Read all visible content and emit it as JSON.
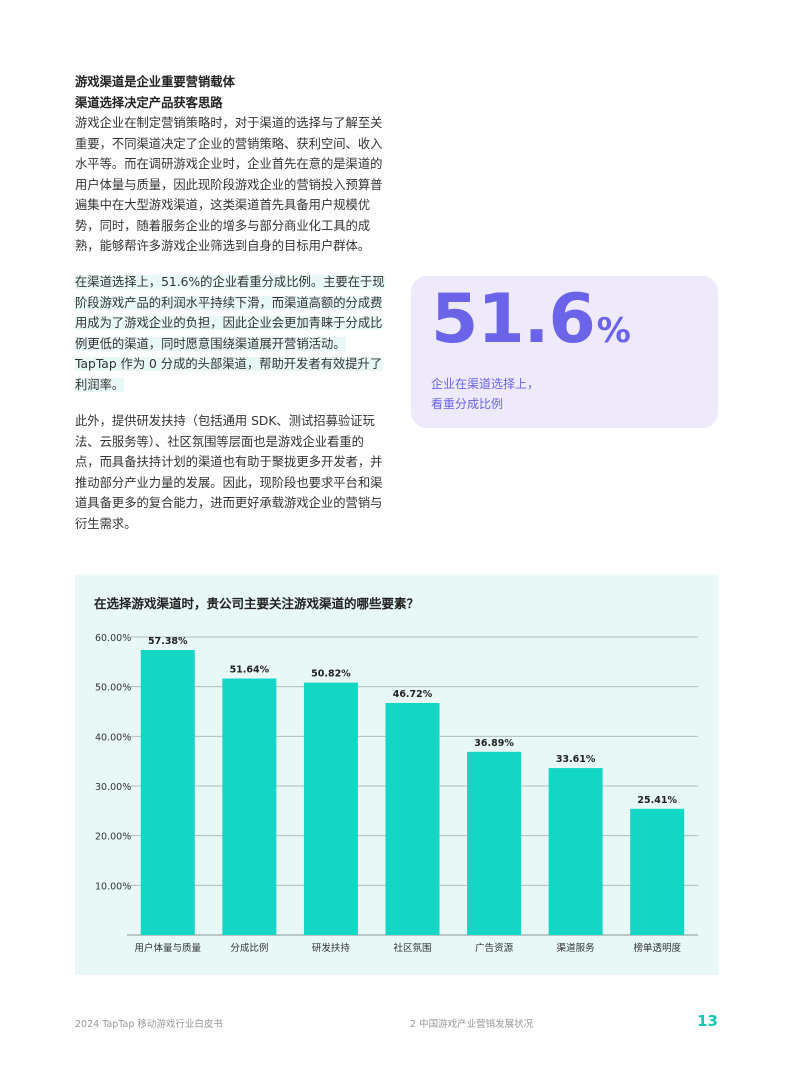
{
  "article": {
    "heading1": "游戏渠道是企业重要营销载体",
    "heading2": "渠道选择决定产品获客思路",
    "para1": "游戏企业在制定营销策略时，对于渠道的选择与了解至关重要，不同渠道决定了企业的营销策略、获利空间、收入水平等。而在调研游戏企业时，企业首先在意的是渠道的用户体量与质量，因此现阶段游戏企业的营销投入预算普遍集中在大型游戏渠道，这类渠道首先具备用户规模优势，同时，随着服务企业的增多与部分商业化工具的成熟，能够帮许多游戏企业筛选到自身的目标用户群体。",
    "para2": "在渠道选择上，51.6%的企业看重分成比例。主要在于现阶段游戏产品的利润水平持续下滑，而渠道高额的分成费用成为了游戏企业的负担，因此企业会更加青睐于分成比例更低的渠道，同时愿意围绕渠道展开营销活动。TapTap 作为 0 分成的头部渠道，帮助开发者有效提升了利润率。",
    "para3": "此外，提供研发扶持（包括通用 SDK、测试招募验证玩法、云服务等）、社区氛围等层面也是游戏企业看重的点，而具备扶持计划的渠道也有助于聚拢更多开发者，并推动部分产业力量的发展。因此，现阶段也要求平台和渠道具备更多的复合能力，进而更好承载游戏企业的营销与衍生需求。"
  },
  "stat": {
    "value": "51.6",
    "unit": "%",
    "caption_line1": "企业在渠道选择上，",
    "caption_line2": "看重分成比例"
  },
  "chart_data": {
    "type": "bar",
    "title": "在选择游戏渠道时，贵公司主要关注游戏渠道的哪些要素？",
    "categories": [
      "用户体量与质量",
      "分成比例",
      "研发扶持",
      "社区氛围",
      "广告资源",
      "渠道服务",
      "榜单透明度"
    ],
    "values": [
      57.38,
      51.64,
      50.82,
      46.72,
      36.89,
      33.61,
      25.41
    ],
    "value_labels": [
      "57.38%",
      "51.64%",
      "50.82%",
      "46.72%",
      "36.89%",
      "33.61%",
      "25.41%"
    ],
    "yticks": [
      10,
      20,
      30,
      40,
      50,
      60
    ],
    "ytick_labels": [
      "10.00%",
      "20.00%",
      "30.00%",
      "40.00%",
      "50.00%",
      "60.00%"
    ],
    "ylim": [
      0,
      60
    ],
    "grid": true,
    "bar_color": "#14d6c4",
    "grid_color": "#b5bdbc"
  },
  "footer": {
    "left": "2024 TapTap 移动游戏行业白皮书",
    "center": "2  中国游戏产业营销发展状况",
    "page": "13"
  },
  "colors": {
    "accent": "#6b63e8",
    "teal": "#14c9b4",
    "card_bg": "#eeeafb",
    "panel_bg": "#e7f8f6"
  }
}
